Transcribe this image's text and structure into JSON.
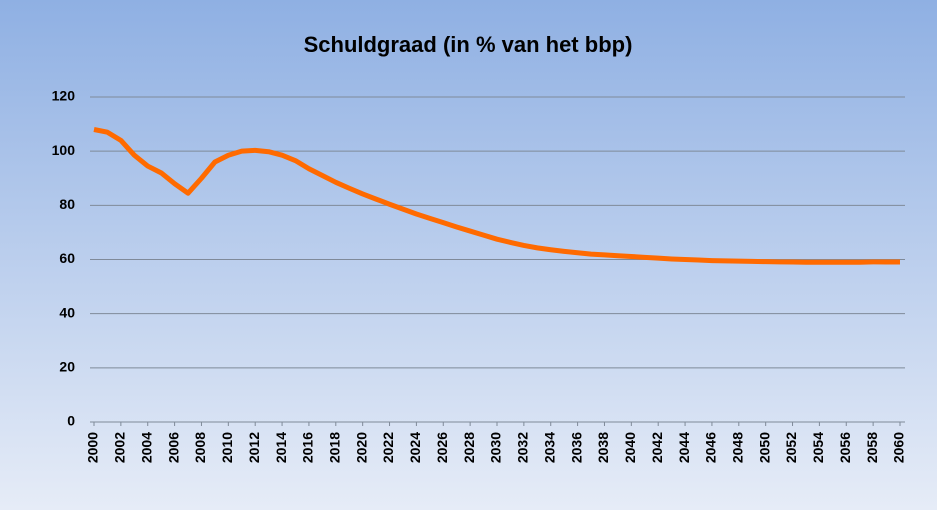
{
  "chart_data": {
    "type": "line",
    "title": "Schuldgraad (in % van het bbp)",
    "x": [
      2000,
      2001,
      2002,
      2003,
      2004,
      2005,
      2006,
      2007,
      2008,
      2009,
      2010,
      2011,
      2012,
      2013,
      2014,
      2015,
      2016,
      2017,
      2018,
      2019,
      2020,
      2021,
      2022,
      2023,
      2024,
      2025,
      2026,
      2027,
      2028,
      2029,
      2030,
      2031,
      2032,
      2033,
      2034,
      2035,
      2036,
      2037,
      2038,
      2039,
      2040,
      2041,
      2042,
      2043,
      2044,
      2045,
      2046,
      2047,
      2048,
      2049,
      2050,
      2051,
      2052,
      2053,
      2054,
      2055,
      2056,
      2057,
      2058,
      2059,
      2060
    ],
    "series": [
      {
        "name": "Schuldgraad",
        "color": "#ff6a00",
        "values": [
          108,
          107,
          104,
          98.5,
          94.5,
          92,
          88,
          84.5,
          90,
          96,
          98.5,
          100,
          100.3,
          99.8,
          98.5,
          96.5,
          93.5,
          91,
          88.5,
          86.3,
          84.2,
          82.3,
          80.4,
          78.6,
          76.8,
          75.2,
          73.6,
          72,
          70.5,
          69,
          67.5,
          66.3,
          65.2,
          64.3,
          63.6,
          63,
          62.5,
          62,
          61.7,
          61.4,
          61.1,
          60.8,
          60.5,
          60.2,
          60,
          59.8,
          59.6,
          59.5,
          59.4,
          59.3,
          59.2,
          59.1,
          59.1,
          59,
          59,
          59,
          59,
          59,
          59.1,
          59.1,
          59.1
        ]
      }
    ],
    "xlim": [
      2000,
      2060
    ],
    "xticks": [
      2000,
      2002,
      2004,
      2006,
      2008,
      2010,
      2012,
      2014,
      2016,
      2018,
      2020,
      2022,
      2024,
      2026,
      2028,
      2030,
      2032,
      2034,
      2036,
      2038,
      2040,
      2042,
      2044,
      2046,
      2048,
      2050,
      2052,
      2054,
      2056,
      2058,
      2060
    ],
    "ylim": [
      0,
      120
    ],
    "yticks": [
      0,
      20,
      40,
      60,
      80,
      100,
      120
    ],
    "grid": true
  }
}
